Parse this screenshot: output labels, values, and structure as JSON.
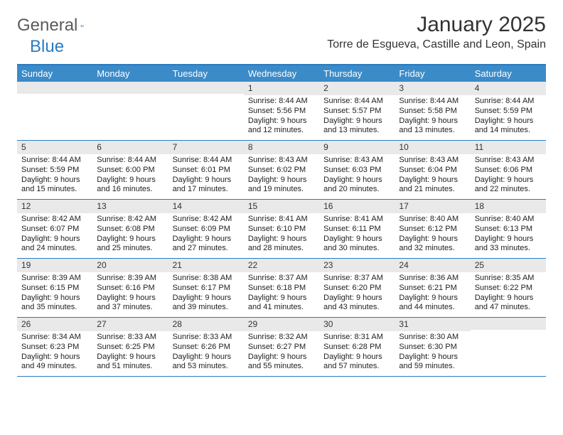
{
  "brand": {
    "general": "General",
    "blue": "Blue"
  },
  "title": "January 2025",
  "location": "Torre de Esgueva, Castille and Leon, Spain",
  "colors": {
    "header_bg": "#3b8bc9",
    "border": "#2a7bbf",
    "daynum_bg": "#e9e9e9",
    "text": "#222222",
    "brand_gray": "#5a5a5a",
    "brand_blue": "#2a7bbf"
  },
  "weekdays": [
    "Sunday",
    "Monday",
    "Tuesday",
    "Wednesday",
    "Thursday",
    "Friday",
    "Saturday"
  ],
  "weeks": [
    [
      {
        "num": "",
        "sunrise": "",
        "sunset": "",
        "daylight": ""
      },
      {
        "num": "",
        "sunrise": "",
        "sunset": "",
        "daylight": ""
      },
      {
        "num": "",
        "sunrise": "",
        "sunset": "",
        "daylight": ""
      },
      {
        "num": "1",
        "sunrise": "Sunrise: 8:44 AM",
        "sunset": "Sunset: 5:56 PM",
        "daylight": "Daylight: 9 hours and 12 minutes."
      },
      {
        "num": "2",
        "sunrise": "Sunrise: 8:44 AM",
        "sunset": "Sunset: 5:57 PM",
        "daylight": "Daylight: 9 hours and 13 minutes."
      },
      {
        "num": "3",
        "sunrise": "Sunrise: 8:44 AM",
        "sunset": "Sunset: 5:58 PM",
        "daylight": "Daylight: 9 hours and 13 minutes."
      },
      {
        "num": "4",
        "sunrise": "Sunrise: 8:44 AM",
        "sunset": "Sunset: 5:59 PM",
        "daylight": "Daylight: 9 hours and 14 minutes."
      }
    ],
    [
      {
        "num": "5",
        "sunrise": "Sunrise: 8:44 AM",
        "sunset": "Sunset: 5:59 PM",
        "daylight": "Daylight: 9 hours and 15 minutes."
      },
      {
        "num": "6",
        "sunrise": "Sunrise: 8:44 AM",
        "sunset": "Sunset: 6:00 PM",
        "daylight": "Daylight: 9 hours and 16 minutes."
      },
      {
        "num": "7",
        "sunrise": "Sunrise: 8:44 AM",
        "sunset": "Sunset: 6:01 PM",
        "daylight": "Daylight: 9 hours and 17 minutes."
      },
      {
        "num": "8",
        "sunrise": "Sunrise: 8:43 AM",
        "sunset": "Sunset: 6:02 PM",
        "daylight": "Daylight: 9 hours and 19 minutes."
      },
      {
        "num": "9",
        "sunrise": "Sunrise: 8:43 AM",
        "sunset": "Sunset: 6:03 PM",
        "daylight": "Daylight: 9 hours and 20 minutes."
      },
      {
        "num": "10",
        "sunrise": "Sunrise: 8:43 AM",
        "sunset": "Sunset: 6:04 PM",
        "daylight": "Daylight: 9 hours and 21 minutes."
      },
      {
        "num": "11",
        "sunrise": "Sunrise: 8:43 AM",
        "sunset": "Sunset: 6:06 PM",
        "daylight": "Daylight: 9 hours and 22 minutes."
      }
    ],
    [
      {
        "num": "12",
        "sunrise": "Sunrise: 8:42 AM",
        "sunset": "Sunset: 6:07 PM",
        "daylight": "Daylight: 9 hours and 24 minutes."
      },
      {
        "num": "13",
        "sunrise": "Sunrise: 8:42 AM",
        "sunset": "Sunset: 6:08 PM",
        "daylight": "Daylight: 9 hours and 25 minutes."
      },
      {
        "num": "14",
        "sunrise": "Sunrise: 8:42 AM",
        "sunset": "Sunset: 6:09 PM",
        "daylight": "Daylight: 9 hours and 27 minutes."
      },
      {
        "num": "15",
        "sunrise": "Sunrise: 8:41 AM",
        "sunset": "Sunset: 6:10 PM",
        "daylight": "Daylight: 9 hours and 28 minutes."
      },
      {
        "num": "16",
        "sunrise": "Sunrise: 8:41 AM",
        "sunset": "Sunset: 6:11 PM",
        "daylight": "Daylight: 9 hours and 30 minutes."
      },
      {
        "num": "17",
        "sunrise": "Sunrise: 8:40 AM",
        "sunset": "Sunset: 6:12 PM",
        "daylight": "Daylight: 9 hours and 32 minutes."
      },
      {
        "num": "18",
        "sunrise": "Sunrise: 8:40 AM",
        "sunset": "Sunset: 6:13 PM",
        "daylight": "Daylight: 9 hours and 33 minutes."
      }
    ],
    [
      {
        "num": "19",
        "sunrise": "Sunrise: 8:39 AM",
        "sunset": "Sunset: 6:15 PM",
        "daylight": "Daylight: 9 hours and 35 minutes."
      },
      {
        "num": "20",
        "sunrise": "Sunrise: 8:39 AM",
        "sunset": "Sunset: 6:16 PM",
        "daylight": "Daylight: 9 hours and 37 minutes."
      },
      {
        "num": "21",
        "sunrise": "Sunrise: 8:38 AM",
        "sunset": "Sunset: 6:17 PM",
        "daylight": "Daylight: 9 hours and 39 minutes."
      },
      {
        "num": "22",
        "sunrise": "Sunrise: 8:37 AM",
        "sunset": "Sunset: 6:18 PM",
        "daylight": "Daylight: 9 hours and 41 minutes."
      },
      {
        "num": "23",
        "sunrise": "Sunrise: 8:37 AM",
        "sunset": "Sunset: 6:20 PM",
        "daylight": "Daylight: 9 hours and 43 minutes."
      },
      {
        "num": "24",
        "sunrise": "Sunrise: 8:36 AM",
        "sunset": "Sunset: 6:21 PM",
        "daylight": "Daylight: 9 hours and 44 minutes."
      },
      {
        "num": "25",
        "sunrise": "Sunrise: 8:35 AM",
        "sunset": "Sunset: 6:22 PM",
        "daylight": "Daylight: 9 hours and 47 minutes."
      }
    ],
    [
      {
        "num": "26",
        "sunrise": "Sunrise: 8:34 AM",
        "sunset": "Sunset: 6:23 PM",
        "daylight": "Daylight: 9 hours and 49 minutes."
      },
      {
        "num": "27",
        "sunrise": "Sunrise: 8:33 AM",
        "sunset": "Sunset: 6:25 PM",
        "daylight": "Daylight: 9 hours and 51 minutes."
      },
      {
        "num": "28",
        "sunrise": "Sunrise: 8:33 AM",
        "sunset": "Sunset: 6:26 PM",
        "daylight": "Daylight: 9 hours and 53 minutes."
      },
      {
        "num": "29",
        "sunrise": "Sunrise: 8:32 AM",
        "sunset": "Sunset: 6:27 PM",
        "daylight": "Daylight: 9 hours and 55 minutes."
      },
      {
        "num": "30",
        "sunrise": "Sunrise: 8:31 AM",
        "sunset": "Sunset: 6:28 PM",
        "daylight": "Daylight: 9 hours and 57 minutes."
      },
      {
        "num": "31",
        "sunrise": "Sunrise: 8:30 AM",
        "sunset": "Sunset: 6:30 PM",
        "daylight": "Daylight: 9 hours and 59 minutes."
      },
      {
        "num": "",
        "sunrise": "",
        "sunset": "",
        "daylight": ""
      }
    ]
  ]
}
